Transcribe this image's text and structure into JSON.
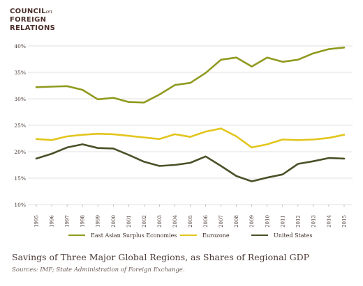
{
  "brand": {
    "line1": "COUNCIL",
    "line1_suffix": "on",
    "line2": "FOREIGN",
    "line3": "RELATIONS"
  },
  "caption": "Savings of Three Major Global Regions, as Shares of Regional GDP",
  "sources": "Sources: IMF; State Administration of Foreign Exchange.",
  "colors": {
    "east_asia": "#8f9a1d",
    "eurozone": "#e2c51c",
    "us": "#4b5028",
    "grid": "#d9d9d9",
    "axis_text": "#4a3a36"
  },
  "chart_data": {
    "type": "line",
    "title": "",
    "xlabel": "",
    "ylabel": "",
    "ylim": [
      10,
      40
    ],
    "yticks": [
      10,
      15,
      20,
      25,
      30,
      35,
      40
    ],
    "ytick_labels": [
      "10%",
      "15%",
      "20%",
      "25%",
      "30%",
      "35%",
      "40%"
    ],
    "grid": true,
    "legend_position": "bottom",
    "x": [
      "1995",
      "1996",
      "1997",
      "1998",
      "1999",
      "2000",
      "2001",
      "2002",
      "2003",
      "2004",
      "2005",
      "2006",
      "2007",
      "2008",
      "2009",
      "2010",
      "2011",
      "2012",
      "2013",
      "2014",
      "2015"
    ],
    "series": [
      {
        "name": "East Asian Surplus Economies",
        "color": "#8f9a1d",
        "values": [
          32.2,
          32.3,
          32.4,
          31.7,
          29.9,
          30.2,
          29.4,
          29.3,
          30.8,
          32.6,
          33.0,
          34.9,
          37.4,
          37.8,
          36.1,
          37.8,
          37.0,
          37.4,
          38.6,
          39.4,
          39.7
        ]
      },
      {
        "name": "Eurozone",
        "color": "#e2c51c",
        "values": [
          22.4,
          22.2,
          22.9,
          23.2,
          23.4,
          23.3,
          23.0,
          22.7,
          22.4,
          23.3,
          22.8,
          23.8,
          24.4,
          22.9,
          20.8,
          21.4,
          22.3,
          22.2,
          22.3,
          22.6,
          23.2
        ]
      },
      {
        "name": "United States",
        "color": "#4b5028",
        "values": [
          18.7,
          19.6,
          20.8,
          21.4,
          20.7,
          20.6,
          19.4,
          18.1,
          17.3,
          17.5,
          17.9,
          19.1,
          17.3,
          15.4,
          14.4,
          15.1,
          15.7,
          17.7,
          18.2,
          18.8,
          18.7
        ]
      }
    ]
  }
}
